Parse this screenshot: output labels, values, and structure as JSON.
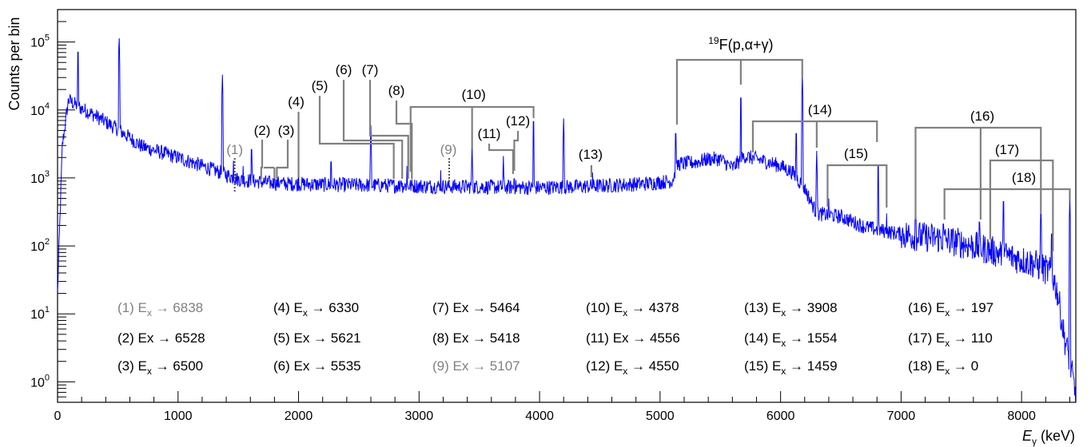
{
  "chart_data": {
    "type": "line",
    "xlabel": "E_γ (keV)",
    "xlabel_parts": {
      "italic": "E",
      "sub": "γ",
      "unit": " (keV)"
    },
    "ylabel": "Counts per bin",
    "x_range": [
      0,
      8450
    ],
    "y_range": [
      0.5,
      300000
    ],
    "y_scale": "log",
    "x_ticks": [
      "0",
      "1000",
      "2000",
      "3000",
      "4000",
      "5000",
      "6000",
      "7000",
      "8000"
    ],
    "x_tick_values": [
      0,
      1000,
      2000,
      3000,
      4000,
      5000,
      6000,
      7000,
      8000
    ],
    "y_ticks": [
      {
        "base": "10",
        "exp": "0",
        "value": 1
      },
      {
        "base": "10",
        "exp": "1",
        "value": 10
      },
      {
        "base": "10",
        "exp": "2",
        "value": 100
      },
      {
        "base": "10",
        "exp": "3",
        "value": 1000
      },
      {
        "base": "10",
        "exp": "4",
        "value": 10000
      },
      {
        "base": "10",
        "exp": "5",
        "value": 100000
      }
    ],
    "line_color": "#0000ff",
    "continuum": [
      [
        0,
        20
      ],
      [
        40,
        3000
      ],
      [
        90,
        14000
      ],
      [
        200,
        10500
      ],
      [
        300,
        8500
      ],
      [
        500,
        5200
      ],
      [
        700,
        2900
      ],
      [
        1000,
        2000
      ],
      [
        1300,
        1300
      ],
      [
        1500,
        950
      ],
      [
        1800,
        830
      ],
      [
        2200,
        800
      ],
      [
        2600,
        780
      ],
      [
        3000,
        760
      ],
      [
        3500,
        740
      ],
      [
        4000,
        720
      ],
      [
        4500,
        760
      ],
      [
        4900,
        830
      ],
      [
        5100,
        900
      ],
      [
        5150,
        1600
      ],
      [
        5300,
        1700
      ],
      [
        5400,
        1900
      ],
      [
        5500,
        1900
      ],
      [
        5600,
        1400
      ],
      [
        5700,
        2100
      ],
      [
        5850,
        1800
      ],
      [
        6000,
        1500
      ],
      [
        6100,
        1200
      ],
      [
        6200,
        700
      ],
      [
        6300,
        300
      ],
      [
        6500,
        270
      ],
      [
        6700,
        190
      ],
      [
        6900,
        160
      ],
      [
        7100,
        140
      ],
      [
        7300,
        130
      ],
      [
        7500,
        110
      ],
      [
        7700,
        90
      ],
      [
        7900,
        70
      ],
      [
        8100,
        55
      ],
      [
        8250,
        40
      ],
      [
        8300,
        20
      ],
      [
        8350,
        5
      ],
      [
        8400,
        2
      ],
      [
        8450,
        0.6
      ]
    ],
    "peaks": [
      [
        100,
        15000
      ],
      [
        170,
        95000
      ],
      [
        511,
        130000
      ],
      [
        720,
        1700
      ],
      [
        850,
        1900
      ],
      [
        1020,
        1200
      ],
      [
        1120,
        1300
      ],
      [
        1255,
        950
      ],
      [
        1368,
        33000
      ],
      [
        1460,
        1800
      ],
      [
        1540,
        1500
      ],
      [
        1610,
        3500
      ],
      [
        1800,
        1400
      ],
      [
        1850,
        1200
      ],
      [
        2000,
        1300
      ],
      [
        2270,
        2300
      ],
      [
        2600,
        6000
      ],
      [
        2710,
        1100
      ],
      [
        2850,
        1200
      ],
      [
        2900,
        1500
      ],
      [
        3180,
        1300
      ],
      [
        3440,
        3000
      ],
      [
        3700,
        2100
      ],
      [
        3790,
        1300
      ],
      [
        3950,
        9000
      ],
      [
        4150,
        1100
      ],
      [
        4200,
        7500
      ],
      [
        4440,
        1200
      ],
      [
        5130,
        6000
      ],
      [
        5670,
        20000
      ],
      [
        6130,
        6000
      ],
      [
        6180,
        33000
      ],
      [
        6300,
        2500
      ],
      [
        6400,
        500
      ],
      [
        6810,
        2000
      ],
      [
        6880,
        300
      ],
      [
        7120,
        500
      ],
      [
        7350,
        280
      ],
      [
        7650,
        300
      ],
      [
        7850,
        600
      ],
      [
        8160,
        400
      ],
      [
        8250,
        200
      ],
      [
        8400,
        500
      ]
    ],
    "annotations": [
      {
        "label": "(1)",
        "style": "gray-dotted",
        "x": 1470
      },
      {
        "label": "(2)",
        "style": "bracket",
        "xs": [
          1690,
          1800
        ]
      },
      {
        "label": "(3)",
        "style": "bracket",
        "xs": [
          1820,
          1940
        ]
      },
      {
        "label": "(4)",
        "style": "single",
        "x": 2000
      },
      {
        "label": "(5)",
        "style": "elbow",
        "from": 2180,
        "to": 2790
      },
      {
        "label": "(6)",
        "style": "elbow",
        "from": 2370,
        "to": 2860
      },
      {
        "label": "(7)",
        "style": "elbow",
        "from": 2580,
        "to": 2910
      },
      {
        "label": "(8)",
        "style": "elbow",
        "from": 2790,
        "to": 2940
      },
      {
        "label": "(9)",
        "style": "gray-dotted",
        "x": 3250
      },
      {
        "label": "(10)",
        "style": "bracket",
        "xs": [
          2930,
          3440,
          3950
        ]
      },
      {
        "label": "(11)",
        "style": "bracket",
        "xs": [
          3570,
          3780
        ]
      },
      {
        "label": "(12)",
        "style": "single",
        "x": 3790
      },
      {
        "label": "(13)",
        "style": "single",
        "x": 4430
      },
      {
        "label": "(14)",
        "style": "bracket",
        "xs": [
          5770,
          6300,
          6800
        ]
      },
      {
        "label": "(15)",
        "style": "bracket",
        "xs": [
          6390,
          6880
        ]
      },
      {
        "label": "(16)",
        "style": "bracket",
        "xs": [
          7120,
          7660,
          8160
        ]
      },
      {
        "label": "(17)",
        "style": "bracket",
        "xs": [
          7740,
          8260
        ]
      },
      {
        "label": "(18)",
        "style": "bracket",
        "xs": [
          7360,
          8400
        ]
      }
    ],
    "reaction_label": {
      "pre": "19",
      "main": "F(p,α+γ)",
      "xs": [
        5140,
        5670,
        6180
      ]
    },
    "legend": [
      [
        {
          "label": "(1) E",
          "sub": "x",
          "rest": " → 6838",
          "gray": true
        },
        {
          "label": "(2) Ex → 6528"
        },
        {
          "label": "(3) E",
          "sub": "x",
          "rest": " → 6500"
        }
      ],
      [
        {
          "label": "(4) E",
          "sub": "x",
          "rest": " → 6330"
        },
        {
          "label": "(5) Ex → 5621"
        },
        {
          "label": "(6) Ex → 5535"
        }
      ],
      [
        {
          "label": "(7) Ex → 5464"
        },
        {
          "label": "(8) Ex → 5418"
        },
        {
          "label": "(9) Ex → 5107",
          "gray": true
        }
      ],
      [
        {
          "label": "(10) E",
          "sub": "x",
          "rest": " → 4378"
        },
        {
          "label": "(11) Ex → 4556"
        },
        {
          "label": "(12) E",
          "sub": "x",
          "rest": " → 4550"
        }
      ],
      [
        {
          "label": "(13) E",
          "sub": "x",
          "rest": " → 3908"
        },
        {
          "label": "(14) E",
          "sub": "x",
          "rest": " → 1554"
        },
        {
          "label": "(15) E",
          "sub": "x",
          "rest": " → 1459"
        }
      ],
      [
        {
          "label": "(16) E",
          "sub": "x",
          "rest": " → 197"
        },
        {
          "label": "(17) E",
          "sub": "x",
          "rest": " → 110"
        },
        {
          "label": "(18) E",
          "sub": "x",
          "rest": " → 0"
        }
      ]
    ]
  }
}
